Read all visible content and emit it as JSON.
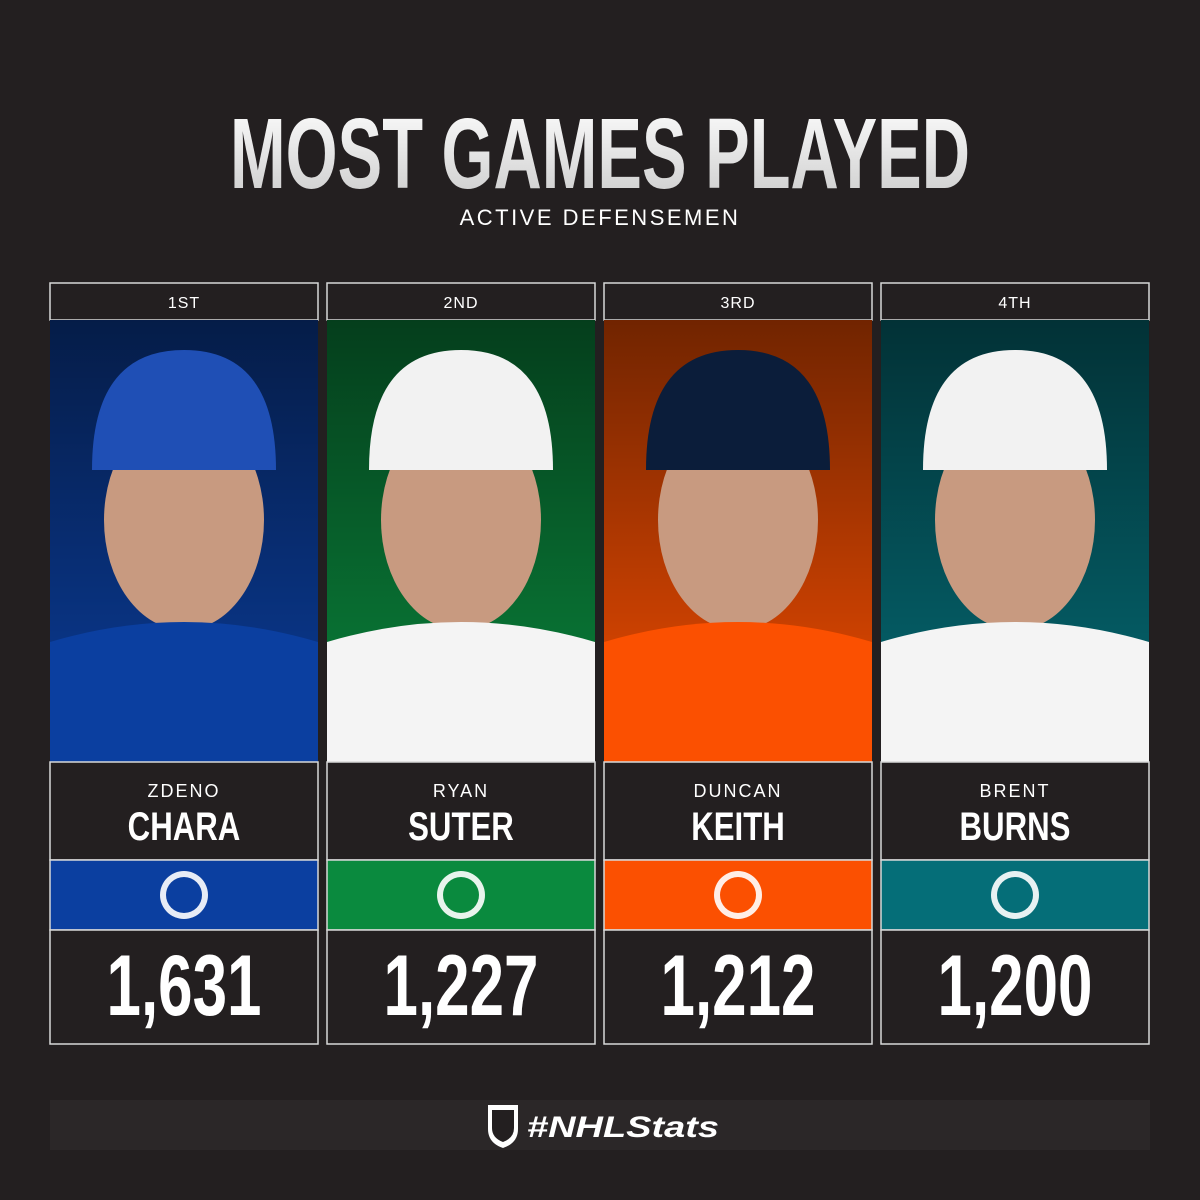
{
  "header": {
    "title": "MOST GAMES PLAYED",
    "subtitle": "ACTIVE DEFENSEMEN"
  },
  "players": [
    {
      "rank": "1ST",
      "first": "ZDENO",
      "last": "CHARA",
      "games": "1,631",
      "color": "#0b3fa0"
    },
    {
      "rank": "2ND",
      "first": "RYAN",
      "last": "SUTER",
      "games": "1,227",
      "color": "#0a8a3e"
    },
    {
      "rank": "3RD",
      "first": "DUNCAN",
      "last": "KEITH",
      "games": "1,212",
      "color": "#fb5001"
    },
    {
      "rank": "4TH",
      "first": "BRENT",
      "last": "BURNS",
      "games": "1,200",
      "color": "#056e78"
    }
  ],
  "footer": {
    "hashtag": "#NHLStats"
  }
}
